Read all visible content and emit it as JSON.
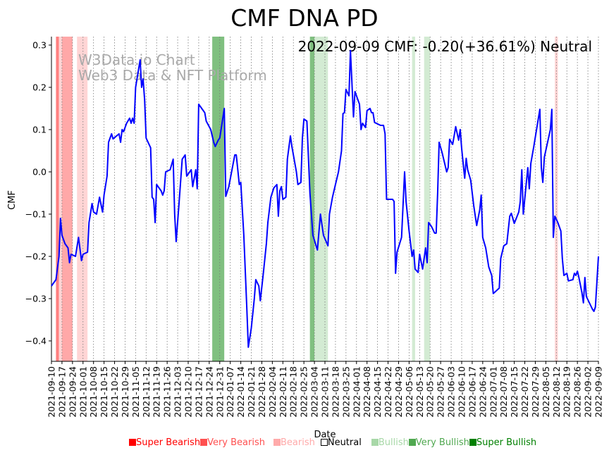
{
  "chart_data": {
    "type": "line",
    "title": "CMF DNA PD",
    "annotation": "2022-09-09 CMF: -0.20(+36.61%) Neutral",
    "watermark": [
      "W3Data.io Chart",
      "Web3 Data & NFT Platform"
    ],
    "xlabel": "Date",
    "ylabel": "CMF",
    "start_date": "2021-09-10",
    "x_unit": "days since start_date",
    "xlim": [
      0,
      364
    ],
    "ylim": [
      -0.45,
      0.32
    ],
    "yticks": [
      0.3,
      0.2,
      0.1,
      0.0,
      -0.1,
      -0.2,
      -0.3,
      -0.4
    ],
    "ytick_labels": [
      "0.3",
      "0.2",
      "0.1",
      "0.0",
      "−0.1",
      "−0.2",
      "−0.3",
      "−0.4"
    ],
    "xtick_labels": [
      "2021-09-10",
      "2021-09-17",
      "2021-09-24",
      "2021-10-01",
      "2021-10-08",
      "2021-10-15",
      "2021-10-22",
      "2021-10-29",
      "2021-11-05",
      "2021-11-12",
      "2021-11-19",
      "2021-11-26",
      "2021-12-03",
      "2021-12-10",
      "2021-12-17",
      "2021-12-24",
      "2021-12-31",
      "2022-01-07",
      "2022-01-14",
      "2022-01-21",
      "2022-01-28",
      "2022-02-04",
      "2022-02-11",
      "2022-02-18",
      "2022-02-25",
      "2022-03-04",
      "2022-03-11",
      "2022-03-18",
      "2022-03-25",
      "2022-04-01",
      "2022-04-08",
      "2022-04-15",
      "2022-04-22",
      "2022-04-29",
      "2022-05-06",
      "2022-05-13",
      "2022-05-20",
      "2022-05-27",
      "2022-06-03",
      "2022-06-10",
      "2022-06-17",
      "2022-06-24",
      "2022-07-01",
      "2022-07-08",
      "2022-07-15",
      "2022-07-22",
      "2022-07-29",
      "2022-08-05",
      "2022-08-12",
      "2022-08-19",
      "2022-08-26",
      "2022-09-02",
      "2022-09-09"
    ],
    "grid": "vertical dotted",
    "line_color": "#0000ff",
    "series": [
      {
        "name": "CMF",
        "points": [
          [
            0,
            -0.27
          ],
          [
            3,
            -0.255
          ],
          [
            5,
            -0.2
          ],
          [
            6,
            -0.11
          ],
          [
            7,
            -0.15
          ],
          [
            9,
            -0.17
          ],
          [
            11,
            -0.18
          ],
          [
            12,
            -0.215
          ],
          [
            13,
            -0.195
          ],
          [
            16,
            -0.2
          ],
          [
            18,
            -0.155
          ],
          [
            20,
            -0.21
          ],
          [
            21,
            -0.195
          ],
          [
            24,
            -0.19
          ],
          [
            25,
            -0.12
          ],
          [
            27,
            -0.075
          ],
          [
            28,
            -0.095
          ],
          [
            30,
            -0.1
          ],
          [
            32,
            -0.06
          ],
          [
            34,
            -0.095
          ],
          [
            35,
            -0.055
          ],
          [
            37,
            -0.01
          ],
          [
            38,
            0.07
          ],
          [
            40,
            0.09
          ],
          [
            41,
            0.078
          ],
          [
            45,
            0.09
          ],
          [
            46,
            0.07
          ],
          [
            47,
            0.1
          ],
          [
            48,
            0.095
          ],
          [
            50,
            0.115
          ],
          [
            52,
            0.127
          ],
          [
            53,
            0.115
          ],
          [
            54,
            0.127
          ],
          [
            55,
            0.115
          ],
          [
            56,
            0.2
          ],
          [
            59,
            0.265
          ],
          [
            60,
            0.2
          ],
          [
            61,
            0.22
          ],
          [
            62,
            0.17
          ],
          [
            63,
            0.08
          ],
          [
            66,
            0.057
          ],
          [
            67,
            -0.06
          ],
          [
            68,
            -0.065
          ],
          [
            69,
            -0.12
          ],
          [
            70,
            -0.03
          ],
          [
            73,
            -0.045
          ],
          [
            74,
            -0.055
          ],
          [
            75,
            -0.045
          ],
          [
            76,
            0.0
          ],
          [
            79,
            0.005
          ],
          [
            81,
            0.03
          ],
          [
            82,
            -0.1
          ],
          [
            83,
            -0.165
          ],
          [
            85,
            -0.07
          ],
          [
            87,
            0.03
          ],
          [
            89,
            0.04
          ],
          [
            90,
            -0.01
          ],
          [
            93,
            0.005
          ],
          [
            94,
            -0.035
          ],
          [
            96,
            0.005
          ],
          [
            97,
            -0.04
          ],
          [
            98,
            0.16
          ],
          [
            102,
            0.14
          ],
          [
            103,
            0.12
          ],
          [
            106,
            0.1
          ],
          [
            108,
            0.07
          ],
          [
            109,
            0.06
          ],
          [
            111,
            0.075
          ],
          [
            112,
            0.08
          ],
          [
            115,
            0.15
          ],
          [
            116,
            -0.058
          ],
          [
            118,
            -0.035
          ],
          [
            122,
            0.04
          ],
          [
            123,
            0.04
          ],
          [
            125,
            -0.03
          ],
          [
            126,
            -0.025
          ],
          [
            128,
            -0.15
          ],
          [
            130,
            -0.32
          ],
          [
            131,
            -0.415
          ],
          [
            133,
            -0.37
          ],
          [
            135,
            -0.3
          ],
          [
            136,
            -0.255
          ],
          [
            138,
            -0.27
          ],
          [
            139,
            -0.305
          ],
          [
            141,
            -0.24
          ],
          [
            143,
            -0.17
          ],
          [
            144,
            -0.12
          ],
          [
            146,
            -0.06
          ],
          [
            148,
            -0.038
          ],
          [
            150,
            -0.03
          ],
          [
            151,
            -0.105
          ],
          [
            152,
            -0.045
          ],
          [
            153,
            -0.035
          ],
          [
            154,
            -0.065
          ],
          [
            156,
            -0.06
          ],
          [
            157,
            0.03
          ],
          [
            159,
            0.085
          ],
          [
            160,
            0.06
          ],
          [
            163,
            0.0
          ],
          [
            164,
            -0.03
          ],
          [
            166,
            -0.025
          ],
          [
            167,
            0.08
          ],
          [
            168,
            0.125
          ],
          [
            170,
            0.12
          ],
          [
            172,
            -0.05
          ],
          [
            174,
            -0.15
          ],
          [
            177,
            -0.185
          ],
          [
            179,
            -0.1
          ],
          [
            181,
            -0.15
          ],
          [
            184,
            -0.175
          ],
          [
            185,
            -0.1
          ],
          [
            187,
            -0.06
          ],
          [
            189,
            -0.03
          ],
          [
            191,
            0.0
          ],
          [
            193,
            0.05
          ],
          [
            194,
            0.138
          ],
          [
            195,
            0.14
          ],
          [
            196,
            0.195
          ],
          [
            198,
            0.18
          ],
          [
            199,
            0.287
          ],
          [
            201,
            0.13
          ],
          [
            202,
            0.19
          ],
          [
            205,
            0.16
          ],
          [
            206,
            0.1
          ],
          [
            207,
            0.115
          ],
          [
            209,
            0.105
          ],
          [
            210,
            0.145
          ],
          [
            212,
            0.15
          ],
          [
            213,
            0.14
          ],
          [
            214,
            0.14
          ],
          [
            215,
            0.117
          ],
          [
            219,
            0.11
          ],
          [
            221,
            0.11
          ],
          [
            222,
            0.09
          ],
          [
            223,
            -0.065
          ],
          [
            227,
            -0.065
          ],
          [
            228,
            -0.07
          ],
          [
            229,
            -0.24
          ],
          [
            230,
            -0.19
          ],
          [
            233,
            -0.155
          ],
          [
            235,
            0.0
          ],
          [
            236,
            -0.07
          ],
          [
            238,
            -0.14
          ],
          [
            240,
            -0.2
          ],
          [
            241,
            -0.185
          ],
          [
            242,
            -0.23
          ],
          [
            244,
            -0.238
          ],
          [
            245,
            -0.195
          ],
          [
            247,
            -0.23
          ],
          [
            249,
            -0.18
          ],
          [
            250,
            -0.215
          ],
          [
            251,
            -0.12
          ],
          [
            253,
            -0.13
          ],
          [
            255,
            -0.145
          ],
          [
            256,
            -0.145
          ],
          [
            257,
            -0.05
          ],
          [
            258,
            0.07
          ],
          [
            260,
            0.045
          ],
          [
            263,
            0.0
          ],
          [
            264,
            0.01
          ],
          [
            265,
            0.077
          ],
          [
            267,
            0.065
          ],
          [
            268,
            0.085
          ],
          [
            269,
            0.107
          ],
          [
            271,
            0.075
          ],
          [
            272,
            0.1
          ],
          [
            273,
            0.055
          ],
          [
            274,
            0.02
          ],
          [
            275,
            -0.015
          ],
          [
            276,
            0.032
          ],
          [
            277,
            0.005
          ],
          [
            279,
            -0.02
          ],
          [
            281,
            -0.08
          ],
          [
            283,
            -0.127
          ],
          [
            285,
            -0.09
          ],
          [
            286,
            -0.055
          ],
          [
            287,
            -0.155
          ],
          [
            289,
            -0.18
          ],
          [
            291,
            -0.225
          ],
          [
            293,
            -0.245
          ],
          [
            294,
            -0.288
          ],
          [
            298,
            -0.275
          ],
          [
            299,
            -0.205
          ],
          [
            301,
            -0.175
          ],
          [
            303,
            -0.17
          ],
          [
            305,
            -0.105
          ],
          [
            306,
            -0.098
          ],
          [
            308,
            -0.122
          ],
          [
            311,
            -0.095
          ],
          [
            312,
            -0.07
          ],
          [
            313,
            0.005
          ],
          [
            314,
            -0.1
          ],
          [
            317,
            0.01
          ],
          [
            318,
            -0.04
          ],
          [
            319,
            0.02
          ],
          [
            321,
            0.06
          ],
          [
            325,
            0.148
          ],
          [
            326,
            0.01
          ],
          [
            327,
            -0.025
          ],
          [
            328,
            0.035
          ],
          [
            332,
            0.1
          ],
          [
            333,
            0.148
          ],
          [
            334,
            -0.155
          ],
          [
            335,
            -0.105
          ],
          [
            337,
            -0.12
          ],
          [
            339,
            -0.14
          ],
          [
            340,
            -0.205
          ],
          [
            341,
            -0.245
          ],
          [
            343,
            -0.24
          ],
          [
            344,
            -0.258
          ],
          [
            347,
            -0.255
          ],
          [
            348,
            -0.24
          ],
          [
            349,
            -0.245
          ],
          [
            350,
            -0.235
          ],
          [
            351,
            -0.25
          ],
          [
            353,
            -0.285
          ],
          [
            354,
            -0.31
          ],
          [
            355,
            -0.25
          ],
          [
            356,
            -0.295
          ],
          [
            360,
            -0.325
          ],
          [
            361,
            -0.33
          ],
          [
            362,
            -0.32
          ],
          [
            364,
            -0.2
          ]
        ]
      }
    ],
    "bands": [
      {
        "start": 3,
        "end": 5,
        "category": "Super Bearish"
      },
      {
        "start": 5,
        "end": 7,
        "category": "Bearish"
      },
      {
        "start": 7,
        "end": 14,
        "category": "Very Bearish"
      },
      {
        "start": 17,
        "end": 24,
        "category": "Bearish"
      },
      {
        "start": 107,
        "end": 115,
        "category": "Super Bullish"
      },
      {
        "start": 172,
        "end": 175,
        "category": "Super Bullish"
      },
      {
        "start": 175,
        "end": 184,
        "category": "Bullish"
      },
      {
        "start": 240,
        "end": 242,
        "category": "Bullish"
      },
      {
        "start": 248,
        "end": 252,
        "category": "Bullish"
      },
      {
        "start": 335,
        "end": 337,
        "category": "Bearish"
      }
    ],
    "legend": {
      "placement": "bottom",
      "entries": [
        {
          "label": "Super Bearish",
          "color": "#ff0000",
          "band_color": "#ff8080"
        },
        {
          "label": "Very Bearish",
          "color": "#ff5050",
          "band_color": "#ffa8a8"
        },
        {
          "label": "Bearish",
          "color": "#ffaaaa",
          "band_color": "#ffd5d5"
        },
        {
          "label": "Neutral",
          "color": "#000000",
          "band_color": ""
        },
        {
          "label": "Bullish",
          "color": "#a8d8a8",
          "band_color": "#d3ebd3"
        },
        {
          "label": "Very Bullish",
          "color": "#50a850",
          "band_color": "#a8d4a8"
        },
        {
          "label": "Super Bullish",
          "color": "#008000",
          "band_color": "#80c080"
        }
      ]
    }
  }
}
